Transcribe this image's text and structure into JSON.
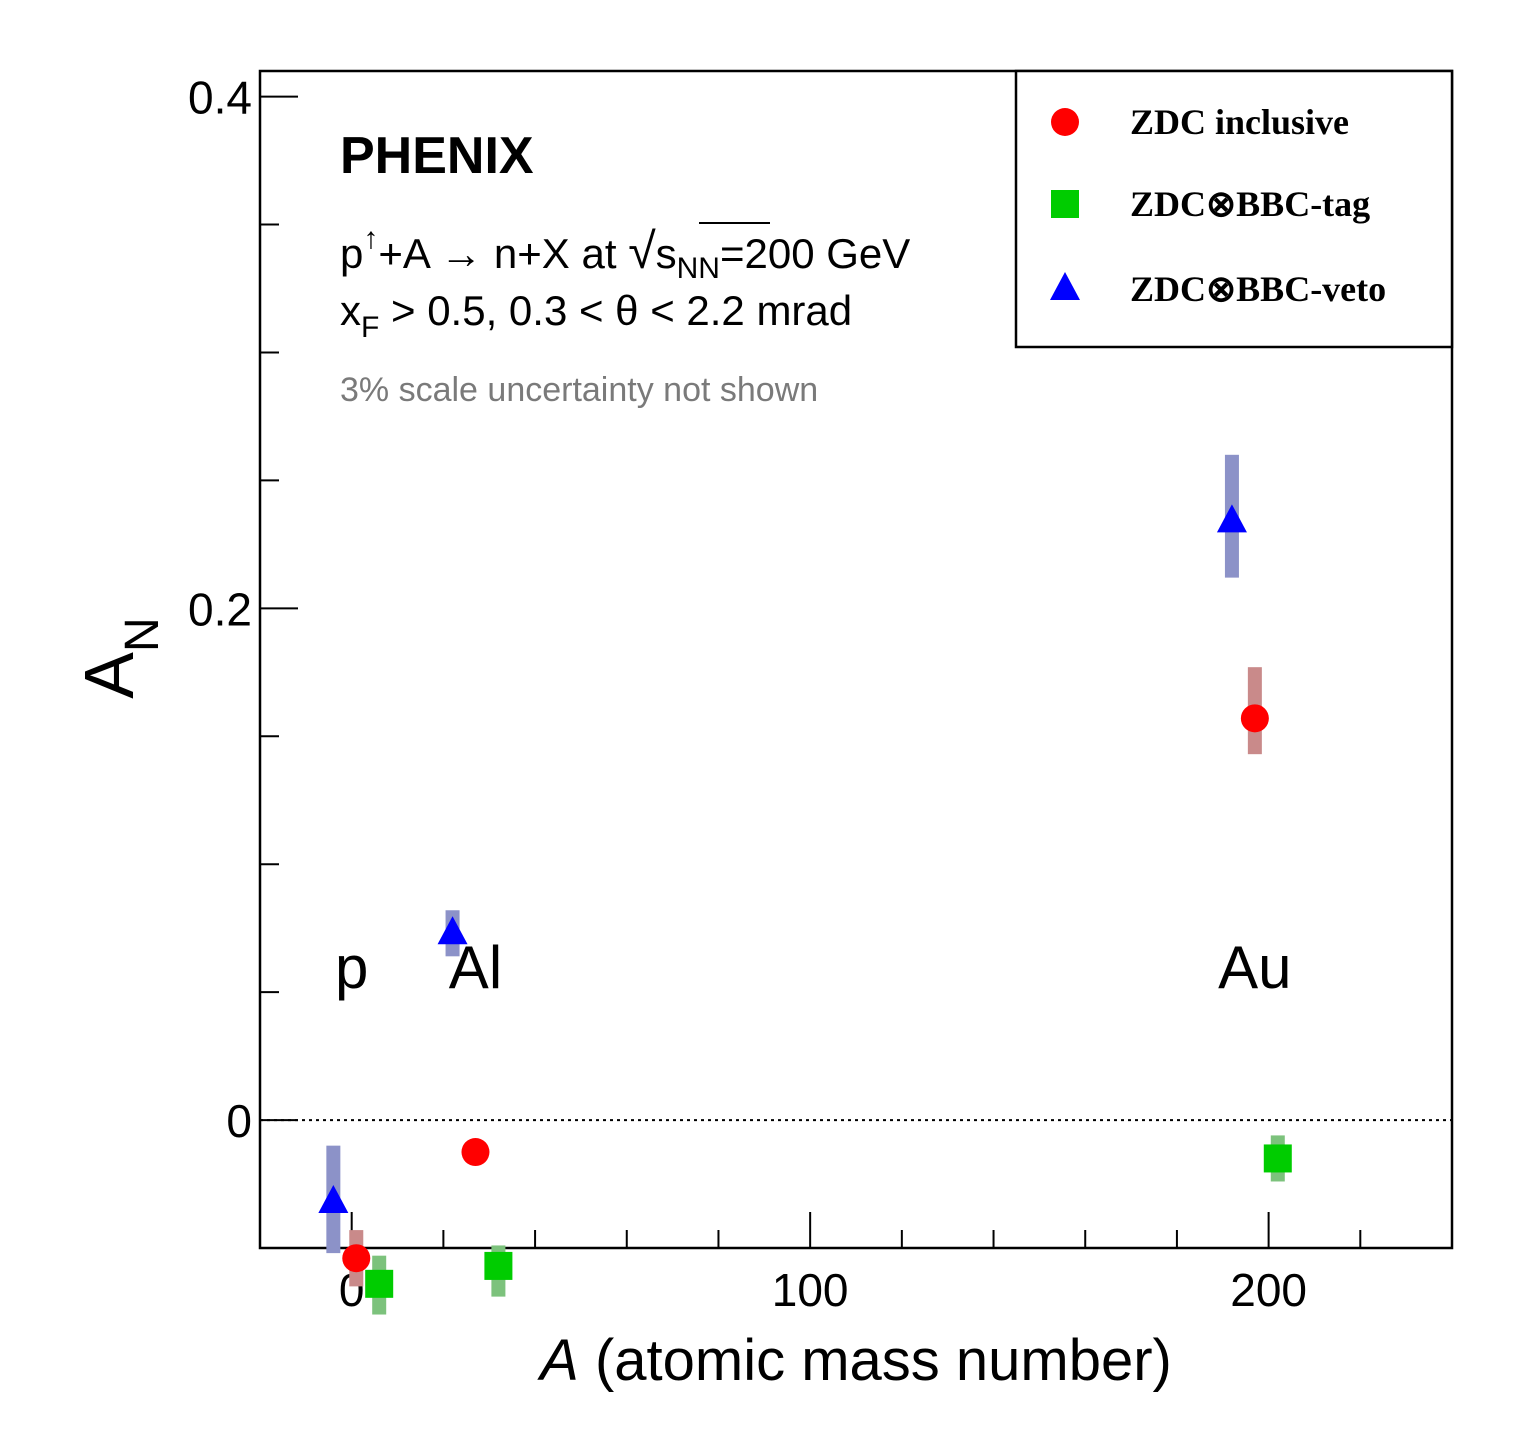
{
  "chart_data": {
    "type": "scatter",
    "title": "",
    "xlabel": "A (atomic mass number)",
    "xlabel_symbol": "A",
    "xlabel_rest": " (atomic mass number)",
    "ylabel_main": "A",
    "ylabel_sub": "N",
    "xlim": [
      -20,
      240
    ],
    "ylim": [
      -0.05,
      0.41
    ],
    "x_major_ticks": [
      0,
      100,
      200
    ],
    "x_minor_ticks": [
      20,
      40,
      60,
      80,
      120,
      140,
      160,
      180,
      220
    ],
    "y_major_ticks": [
      0,
      0.2,
      0.4
    ],
    "y_tick_labels": [
      "0",
      "0.2",
      "0.4"
    ],
    "y_minor_ticks": [
      -0.05,
      0.05,
      0.1,
      0.15,
      0.25,
      0.3,
      0.35
    ],
    "zero_line": true,
    "grid": false,
    "legend_position": "top-right",
    "series": [
      {
        "name": "ZDC inclusive",
        "marker": "circle",
        "color": "#ff0000",
        "syst_color": "#c98a8a",
        "points": [
          {
            "x": 1,
            "y": -0.054,
            "syst_lo": -0.065,
            "syst_hi": -0.043
          },
          {
            "x": 27,
            "y": -0.0125,
            "syst_lo": -0.0125,
            "syst_hi": -0.0125
          },
          {
            "x": 197,
            "y": 0.157,
            "syst_lo": 0.143,
            "syst_hi": 0.177
          }
        ]
      },
      {
        "name": "ZDC⊗BBC-tag",
        "marker": "square",
        "color": "#00cc00",
        "syst_color": "#7cc27c",
        "points": [
          {
            "x": 6,
            "y": -0.064,
            "syst_lo": -0.076,
            "syst_hi": -0.053
          },
          {
            "x": 32,
            "y": -0.057,
            "syst_lo": -0.069,
            "syst_hi": -0.049
          },
          {
            "x": 202,
            "y": -0.015,
            "syst_lo": -0.024,
            "syst_hi": -0.006
          }
        ]
      },
      {
        "name": "ZDC⊗BBC-veto",
        "marker": "triangle",
        "color": "#0000ff",
        "syst_color": "#8c92c8",
        "points": [
          {
            "x": -4,
            "y": -0.032,
            "syst_lo": -0.052,
            "syst_hi": -0.01
          },
          {
            "x": 22,
            "y": 0.073,
            "syst_lo": 0.064,
            "syst_hi": 0.082
          },
          {
            "x": 192,
            "y": 0.234,
            "syst_lo": 0.212,
            "syst_hi": 0.26
          }
        ]
      }
    ],
    "annotations": {
      "experiment": "PHENIX",
      "reaction": {
        "p": "p",
        "arrow_sup": "↑",
        "mid": "+A → n+X at ",
        "sqrt": "√",
        "s": "s",
        "s_sub": "NN",
        "energy": "=200 GeV"
      },
      "cuts": {
        "x": "x",
        "x_sub": "F",
        "rest": " > 0.5, 0.3 < θ < 2.2 mrad"
      },
      "scale_note": "3% scale uncertainty not shown",
      "nuclei": [
        {
          "label": "p",
          "x": 0
        },
        {
          "label": "Al",
          "x": 27
        },
        {
          "label": "Au",
          "x": 197
        }
      ]
    }
  }
}
